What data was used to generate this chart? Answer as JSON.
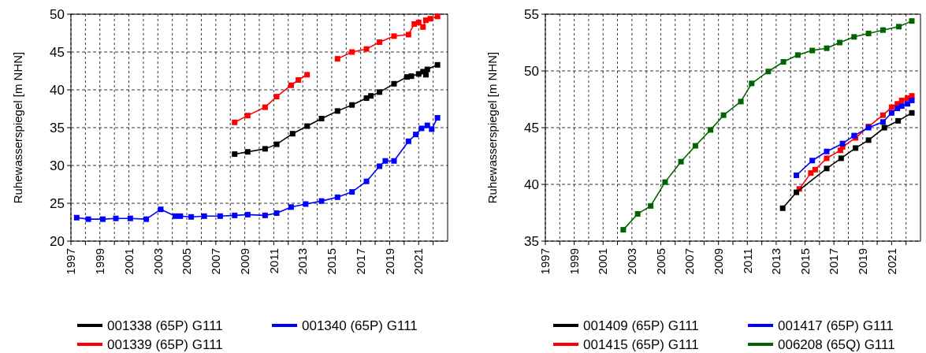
{
  "chart_data": [
    {
      "type": "line",
      "ylabel": "Ruhewasserspiegel [m NHN]",
      "xlim": [
        1997,
        2023
      ],
      "ylim": [
        20,
        50
      ],
      "yticks": [
        20,
        25,
        30,
        35,
        40,
        45,
        50
      ],
      "xticks": [
        1997,
        {
          "value": 1998,
          "label": null
        },
        1999,
        {
          "value": 2000,
          "label": null
        },
        2001,
        {
          "value": 2002,
          "label": null
        },
        2003,
        {
          "value": 2004,
          "label": null
        },
        2005,
        {
          "value": 2006,
          "label": null
        },
        2007,
        {
          "value": 2008,
          "label": null
        },
        2009,
        {
          "value": 2010,
          "label": null
        },
        2011,
        {
          "value": 2012,
          "label": null
        },
        2013,
        {
          "value": 2014,
          "label": null
        },
        2015,
        {
          "value": 2016,
          "label": null
        },
        2017,
        {
          "value": 2018,
          "label": null
        },
        2019,
        {
          "value": 2020,
          "label": null
        },
        2021,
        {
          "value": 2022,
          "label": null
        }
      ],
      "grid": true,
      "legend": "bottom",
      "marker": "square",
      "line_style": "solid",
      "series": [
        {
          "name": "001338 (65P) G111",
          "color": "#000000",
          "x": [
            2008.3,
            2009.2,
            2010.4,
            2011.2,
            2012.3,
            2013.3,
            2014.3,
            2015.4,
            2016.4,
            2017.4,
            2017.7,
            2018.3,
            2019.3,
            2020.2,
            2020.5,
            2021.0,
            2021.3,
            2021.5,
            2021.6,
            2022.3
          ],
          "values": [
            31.5,
            31.8,
            32.2,
            32.8,
            34.2,
            35.2,
            36.2,
            37.2,
            38.0,
            38.9,
            39.2,
            39.7,
            40.8,
            41.7,
            41.8,
            42.1,
            42.4,
            42.0,
            42.7,
            43.3
          ]
        },
        {
          "name": "001340 (65P) G111",
          "color": "#0000ff",
          "x": [
            1997.4,
            1998.2,
            1999.2,
            2000.1,
            2001.1,
            2002.2,
            2003.2,
            2004.2,
            2004.55,
            2005.3,
            2006.2,
            2007.3,
            2008.3,
            2009.2,
            2010.4,
            2011.2,
            2012.2,
            2013.2,
            2014.3,
            2015.4,
            2016.4,
            2017.4,
            2018.3,
            2018.7,
            2019.3,
            2020.3,
            2020.8,
            2021.2,
            2021.6,
            2021.9,
            2022.3
          ],
          "values": [
            23.1,
            22.9,
            22.9,
            23.0,
            23.0,
            22.9,
            24.2,
            23.3,
            23.3,
            23.2,
            23.3,
            23.3,
            23.4,
            23.5,
            23.4,
            23.7,
            24.5,
            24.9,
            25.3,
            25.8,
            26.5,
            27.9,
            29.9,
            30.6,
            30.6,
            33.2,
            34.1,
            34.9,
            35.3,
            34.8,
            36.3
          ]
        },
        {
          "name": "001339 (65P) G111",
          "color": "#ff0000",
          "x": [
            2008.3,
            2009.2,
            2010.4,
            2011.2,
            2012.2,
            2012.7,
            2013.3,
            2014.3,
            2015.4,
            2016.4,
            2017.4,
            2018.3,
            2019.3,
            2020.3,
            2020.7,
            2021.0,
            2021.3,
            2021.5,
            2021.8,
            2022.3
          ],
          "values": [
            35.7,
            36.6,
            37.7,
            39.1,
            40.6,
            41.3,
            42.0,
            null,
            44.1,
            45.0,
            45.4,
            46.3,
            47.1,
            47.3,
            48.7,
            48.9,
            48.3,
            49.2,
            49.4,
            49.7
          ]
        }
      ]
    },
    {
      "type": "line",
      "ylabel": "Ruhewasserspiegel [m NHN]",
      "xlim": [
        1997,
        2023
      ],
      "ylim": [
        35,
        55
      ],
      "yticks": [
        35,
        40,
        45,
        50,
        55
      ],
      "xticks": [
        1997,
        {
          "value": 1998,
          "label": null
        },
        1999,
        {
          "value": 2000,
          "label": null
        },
        2001,
        {
          "value": 2002,
          "label": null
        },
        2003,
        {
          "value": 2004,
          "label": null
        },
        2005,
        {
          "value": 2006,
          "label": null
        },
        2007,
        {
          "value": 2008,
          "label": null
        },
        2009,
        {
          "value": 2010,
          "label": null
        },
        2011,
        {
          "value": 2012,
          "label": null
        },
        2013,
        {
          "value": 2014,
          "label": null
        },
        2015,
        {
          "value": 2016,
          "label": null
        },
        2017,
        {
          "value": 2018,
          "label": null
        },
        2019,
        {
          "value": 2020,
          "label": null
        },
        2021,
        {
          "value": 2022,
          "label": null
        }
      ],
      "grid": true,
      "legend": "bottom",
      "marker": "square",
      "line_style": "solid",
      "series": [
        {
          "name": "001409 (65P) G111",
          "color": "#000000",
          "x": [
            2013.45,
            2014.4,
            2016.5,
            2017.5,
            2018.5,
            2019.4,
            2020.5,
            2021.45,
            2022.4
          ],
          "values": [
            37.9,
            39.3,
            41.4,
            42.3,
            43.2,
            43.9,
            45.0,
            45.6,
            46.3
          ]
        },
        {
          "name": "001417 (65P) G111",
          "color": "#0000ff",
          "x": [
            2014.4,
            2015.5,
            2016.5,
            2017.6,
            2018.4,
            2019.4,
            2020.4,
            2021.0,
            2021.4,
            2021.7,
            2022.1,
            2022.4
          ],
          "values": [
            40.8,
            42.1,
            42.9,
            43.6,
            44.3,
            45.0,
            45.5,
            46.3,
            46.7,
            46.9,
            47.1,
            47.4
          ]
        },
        {
          "name": "001415 (65P) G111",
          "color": "#ff0000",
          "x": [
            2014.6,
            2015.4,
            2015.7,
            2016.5,
            2017.45,
            2017.6,
            2018.5,
            2019.4,
            2020.4,
            2021.0,
            2021.4,
            2021.7,
            2022.1,
            2022.4
          ],
          "values": [
            39.6,
            41.0,
            41.3,
            42.3,
            43.0,
            43.3,
            44.1,
            45.1,
            46.1,
            46.8,
            47.1,
            47.4,
            47.6,
            47.8
          ]
        },
        {
          "name": "006208 (65Q) G111",
          "color": "#006400",
          "x": [
            2002.4,
            2003.4,
            2004.3,
            2005.3,
            2006.4,
            2007.4,
            2008.45,
            2009.35,
            2010.55,
            2011.3,
            2012.45,
            2013.5,
            2014.5,
            2015.5,
            2016.5,
            2017.4,
            2018.4,
            2019.4,
            2020.4,
            2021.5,
            2022.4
          ],
          "values": [
            36.0,
            37.4,
            38.1,
            40.2,
            42.0,
            43.4,
            44.8,
            46.1,
            47.3,
            48.9,
            49.95,
            50.8,
            51.4,
            51.8,
            52.0,
            52.5,
            53.0,
            53.3,
            53.6,
            53.9,
            54.4
          ]
        }
      ]
    }
  ]
}
